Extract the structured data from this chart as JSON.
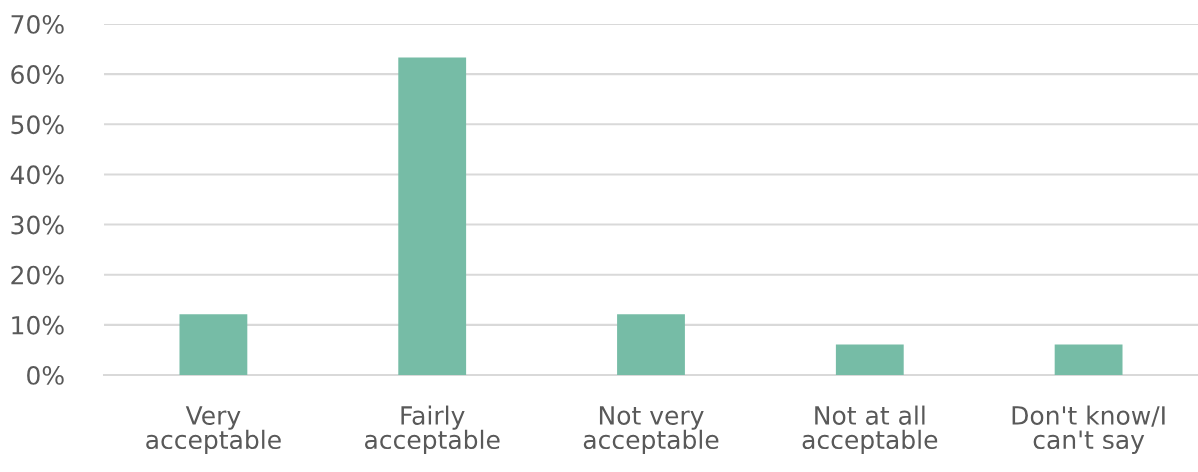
{
  "chart_data": {
    "type": "bar",
    "categories": [
      "Very\nacceptable",
      "Fairly\nacceptable",
      "Not very\nacceptable",
      "Not at all\nacceptable",
      "Don't know/I\ncan't say"
    ],
    "values": [
      12.1,
      63.3,
      12.1,
      6.1,
      6.1
    ],
    "color": "#76bca6",
    "ylim": [
      0,
      70
    ],
    "yticks": [
      {
        "value": 0,
        "label": "0%"
      },
      {
        "value": 10,
        "label": "10%"
      },
      {
        "value": 20,
        "label": "20%"
      },
      {
        "value": 30,
        "label": "30%"
      },
      {
        "value": 40,
        "label": "40%"
      },
      {
        "value": 50,
        "label": "50%"
      },
      {
        "value": 60,
        "label": "60%"
      },
      {
        "value": 70,
        "label": "70%"
      }
    ],
    "grid": "y",
    "legend": false
  }
}
